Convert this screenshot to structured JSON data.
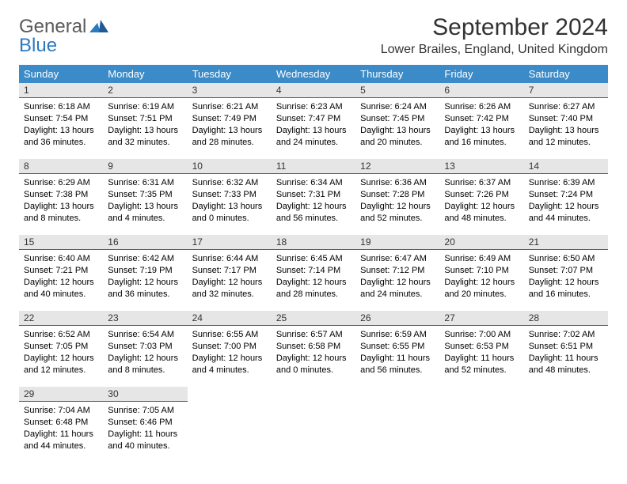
{
  "brand": {
    "name1": "General",
    "name2": "Blue"
  },
  "title": "September 2024",
  "location": "Lower Brailes, England, United Kingdom",
  "colors": {
    "header_bg": "#3b8bc8",
    "header_text": "#ffffff",
    "daynum_bg": "#e6e6e6",
    "cell_border": "#2b6aa0",
    "logo_gray": "#5a5a5a",
    "logo_blue": "#2b7ac0"
  },
  "typography": {
    "title_fontsize": 30,
    "location_fontsize": 16,
    "dayhead_fontsize": 13,
    "body_fontsize": 11
  },
  "day_headers": [
    "Sunday",
    "Monday",
    "Tuesday",
    "Wednesday",
    "Thursday",
    "Friday",
    "Saturday"
  ],
  "days": [
    {
      "n": "1",
      "sunrise": "Sunrise: 6:18 AM",
      "sunset": "Sunset: 7:54 PM",
      "daylight": "Daylight: 13 hours and 36 minutes."
    },
    {
      "n": "2",
      "sunrise": "Sunrise: 6:19 AM",
      "sunset": "Sunset: 7:51 PM",
      "daylight": "Daylight: 13 hours and 32 minutes."
    },
    {
      "n": "3",
      "sunrise": "Sunrise: 6:21 AM",
      "sunset": "Sunset: 7:49 PM",
      "daylight": "Daylight: 13 hours and 28 minutes."
    },
    {
      "n": "4",
      "sunrise": "Sunrise: 6:23 AM",
      "sunset": "Sunset: 7:47 PM",
      "daylight": "Daylight: 13 hours and 24 minutes."
    },
    {
      "n": "5",
      "sunrise": "Sunrise: 6:24 AM",
      "sunset": "Sunset: 7:45 PM",
      "daylight": "Daylight: 13 hours and 20 minutes."
    },
    {
      "n": "6",
      "sunrise": "Sunrise: 6:26 AM",
      "sunset": "Sunset: 7:42 PM",
      "daylight": "Daylight: 13 hours and 16 minutes."
    },
    {
      "n": "7",
      "sunrise": "Sunrise: 6:27 AM",
      "sunset": "Sunset: 7:40 PM",
      "daylight": "Daylight: 13 hours and 12 minutes."
    },
    {
      "n": "8",
      "sunrise": "Sunrise: 6:29 AM",
      "sunset": "Sunset: 7:38 PM",
      "daylight": "Daylight: 13 hours and 8 minutes."
    },
    {
      "n": "9",
      "sunrise": "Sunrise: 6:31 AM",
      "sunset": "Sunset: 7:35 PM",
      "daylight": "Daylight: 13 hours and 4 minutes."
    },
    {
      "n": "10",
      "sunrise": "Sunrise: 6:32 AM",
      "sunset": "Sunset: 7:33 PM",
      "daylight": "Daylight: 13 hours and 0 minutes."
    },
    {
      "n": "11",
      "sunrise": "Sunrise: 6:34 AM",
      "sunset": "Sunset: 7:31 PM",
      "daylight": "Daylight: 12 hours and 56 minutes."
    },
    {
      "n": "12",
      "sunrise": "Sunrise: 6:36 AM",
      "sunset": "Sunset: 7:28 PM",
      "daylight": "Daylight: 12 hours and 52 minutes."
    },
    {
      "n": "13",
      "sunrise": "Sunrise: 6:37 AM",
      "sunset": "Sunset: 7:26 PM",
      "daylight": "Daylight: 12 hours and 48 minutes."
    },
    {
      "n": "14",
      "sunrise": "Sunrise: 6:39 AM",
      "sunset": "Sunset: 7:24 PM",
      "daylight": "Daylight: 12 hours and 44 minutes."
    },
    {
      "n": "15",
      "sunrise": "Sunrise: 6:40 AM",
      "sunset": "Sunset: 7:21 PM",
      "daylight": "Daylight: 12 hours and 40 minutes."
    },
    {
      "n": "16",
      "sunrise": "Sunrise: 6:42 AM",
      "sunset": "Sunset: 7:19 PM",
      "daylight": "Daylight: 12 hours and 36 minutes."
    },
    {
      "n": "17",
      "sunrise": "Sunrise: 6:44 AM",
      "sunset": "Sunset: 7:17 PM",
      "daylight": "Daylight: 12 hours and 32 minutes."
    },
    {
      "n": "18",
      "sunrise": "Sunrise: 6:45 AM",
      "sunset": "Sunset: 7:14 PM",
      "daylight": "Daylight: 12 hours and 28 minutes."
    },
    {
      "n": "19",
      "sunrise": "Sunrise: 6:47 AM",
      "sunset": "Sunset: 7:12 PM",
      "daylight": "Daylight: 12 hours and 24 minutes."
    },
    {
      "n": "20",
      "sunrise": "Sunrise: 6:49 AM",
      "sunset": "Sunset: 7:10 PM",
      "daylight": "Daylight: 12 hours and 20 minutes."
    },
    {
      "n": "21",
      "sunrise": "Sunrise: 6:50 AM",
      "sunset": "Sunset: 7:07 PM",
      "daylight": "Daylight: 12 hours and 16 minutes."
    },
    {
      "n": "22",
      "sunrise": "Sunrise: 6:52 AM",
      "sunset": "Sunset: 7:05 PM",
      "daylight": "Daylight: 12 hours and 12 minutes."
    },
    {
      "n": "23",
      "sunrise": "Sunrise: 6:54 AM",
      "sunset": "Sunset: 7:03 PM",
      "daylight": "Daylight: 12 hours and 8 minutes."
    },
    {
      "n": "24",
      "sunrise": "Sunrise: 6:55 AM",
      "sunset": "Sunset: 7:00 PM",
      "daylight": "Daylight: 12 hours and 4 minutes."
    },
    {
      "n": "25",
      "sunrise": "Sunrise: 6:57 AM",
      "sunset": "Sunset: 6:58 PM",
      "daylight": "Daylight: 12 hours and 0 minutes."
    },
    {
      "n": "26",
      "sunrise": "Sunrise: 6:59 AM",
      "sunset": "Sunset: 6:55 PM",
      "daylight": "Daylight: 11 hours and 56 minutes."
    },
    {
      "n": "27",
      "sunrise": "Sunrise: 7:00 AM",
      "sunset": "Sunset: 6:53 PM",
      "daylight": "Daylight: 11 hours and 52 minutes."
    },
    {
      "n": "28",
      "sunrise": "Sunrise: 7:02 AM",
      "sunset": "Sunset: 6:51 PM",
      "daylight": "Daylight: 11 hours and 48 minutes."
    },
    {
      "n": "29",
      "sunrise": "Sunrise: 7:04 AM",
      "sunset": "Sunset: 6:48 PM",
      "daylight": "Daylight: 11 hours and 44 minutes."
    },
    {
      "n": "30",
      "sunrise": "Sunrise: 7:05 AM",
      "sunset": "Sunset: 6:46 PM",
      "daylight": "Daylight: 11 hours and 40 minutes."
    }
  ]
}
